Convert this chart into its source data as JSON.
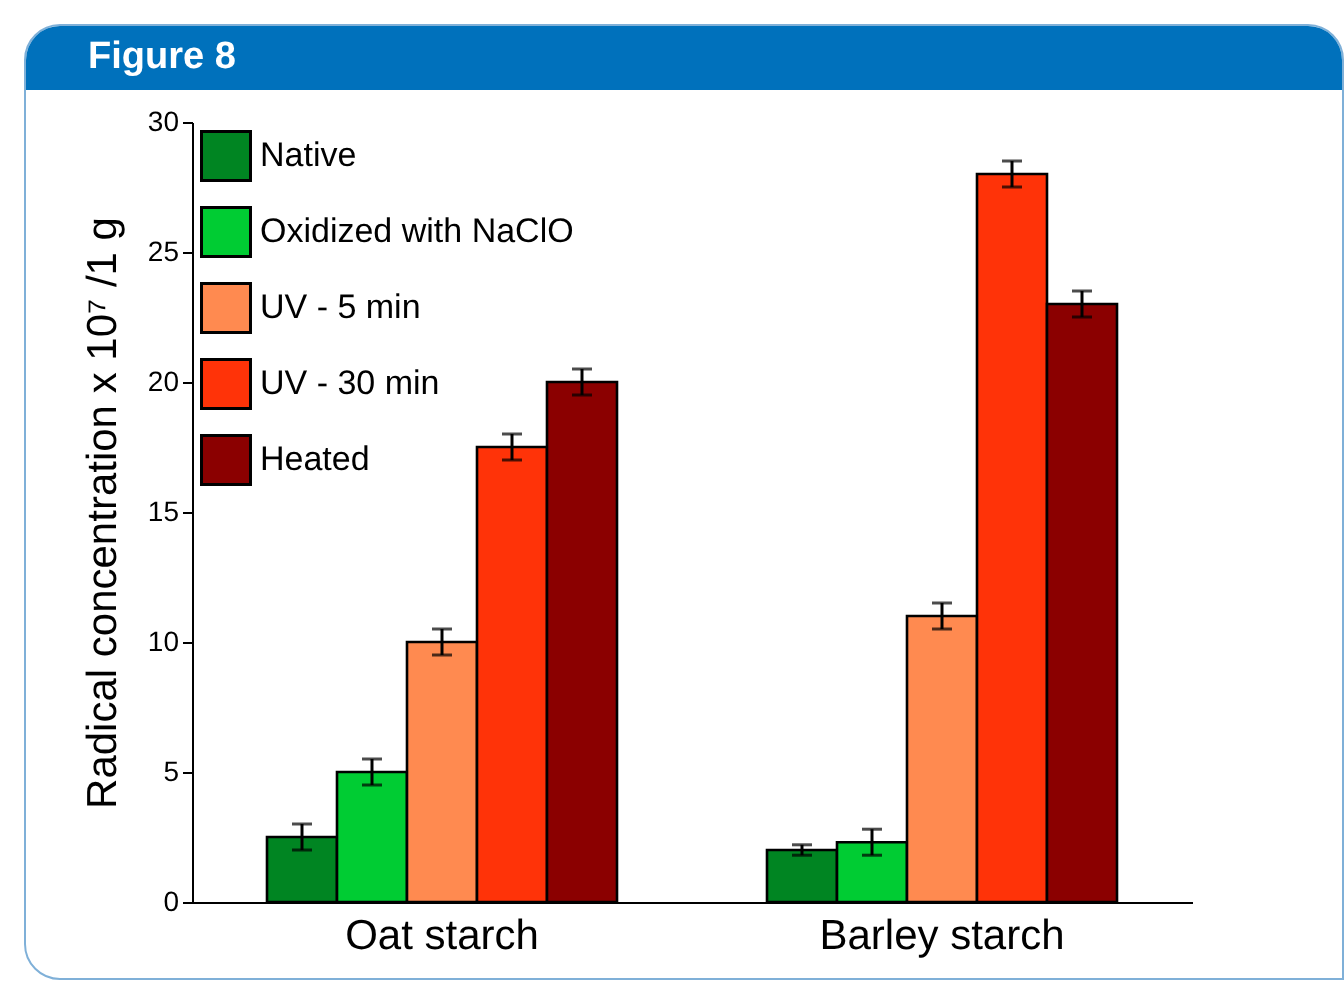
{
  "chart_data": {
    "type": "bar",
    "title": "Figure 8",
    "ylabel": "Radical concentration x 10⁷ /1 g",
    "categories": [
      "Oat starch",
      "Barley starch"
    ],
    "series": [
      {
        "name": "Native",
        "color": "#008522",
        "values": [
          2.5,
          2.0
        ],
        "errors": [
          0.5,
          0.2
        ]
      },
      {
        "name": "Oxidized with NaClO",
        "color": "#00cc33",
        "values": [
          5.0,
          2.3
        ],
        "errors": [
          0.5,
          0.5
        ]
      },
      {
        "name": "UV - 5 min",
        "color": "#ff8a50",
        "values": [
          10.0,
          11.0
        ],
        "errors": [
          0.5,
          0.5
        ]
      },
      {
        "name": "UV - 30 min",
        "color": "#ff3308",
        "values": [
          17.5,
          28.0
        ],
        "errors": [
          0.5,
          0.5
        ]
      },
      {
        "name": "Heated",
        "color": "#8b0000",
        "values": [
          20.0,
          23.0
        ],
        "errors": [
          0.5,
          0.5
        ]
      }
    ],
    "ylim": [
      0,
      30
    ],
    "yticks": [
      0,
      5,
      10,
      15,
      20,
      25,
      30
    ],
    "grid": false,
    "legend": "top left"
  }
}
